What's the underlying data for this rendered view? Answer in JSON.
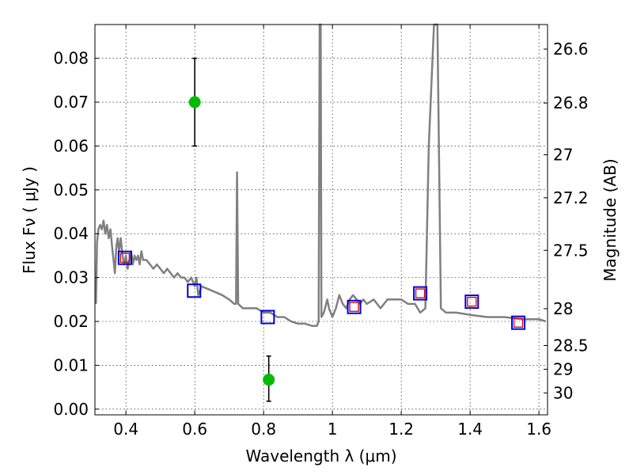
{
  "chart_data": {
    "type": "scatter",
    "title": "",
    "xlabel": "Wavelength  λ (μm)",
    "ylabel": "Flux  Fν  ( μJy )",
    "y2label": "Magnitude (AB)",
    "xlim": [
      0.31,
      1.625
    ],
    "ylim": [
      -0.0013,
      0.0877
    ],
    "grid": true,
    "x_ticks": [
      0.4,
      0.6,
      0.8,
      1.0,
      1.2,
      1.4,
      1.6
    ],
    "x_tick_labels": [
      "0.4",
      "0.6",
      "0.8",
      "1",
      "1.2",
      "1.4",
      "1.6"
    ],
    "y_ticks": [
      0.0,
      0.01,
      0.02,
      0.03,
      0.04,
      0.05,
      0.06,
      0.07,
      0.08
    ],
    "y_tick_labels": [
      "0.00",
      "0.01",
      "0.02",
      "0.03",
      "0.04",
      "0.05",
      "0.06",
      "0.07",
      "0.08"
    ],
    "y2_ticks": [
      {
        "label": "26.6",
        "flux": 0.0821
      },
      {
        "label": "26.8",
        "flux": 0.0698
      },
      {
        "label": "27",
        "flux": 0.058
      },
      {
        "label": "27.2",
        "flux": 0.0482
      },
      {
        "label": "27.5",
        "flux": 0.0362
      },
      {
        "label": "28",
        "flux": 0.0229
      },
      {
        "label": "28.5",
        "flux": 0.0145
      },
      {
        "label": "29",
        "flux": 0.0091
      },
      {
        "label": "30",
        "flux": 0.0037
      }
    ],
    "series": [
      {
        "kind": "line",
        "color": "#808080",
        "points": [
          [
            0.313,
            0.024
          ],
          [
            0.316,
            0.038
          ],
          [
            0.32,
            0.041
          ],
          [
            0.325,
            0.042
          ],
          [
            0.33,
            0.041
          ],
          [
            0.335,
            0.043
          ],
          [
            0.34,
            0.04
          ],
          [
            0.345,
            0.042
          ],
          [
            0.35,
            0.039
          ],
          [
            0.355,
            0.041
          ],
          [
            0.36,
            0.037
          ],
          [
            0.364,
            0.034
          ],
          [
            0.368,
            0.031
          ],
          [
            0.372,
            0.037
          ],
          [
            0.376,
            0.039
          ],
          [
            0.38,
            0.036
          ],
          [
            0.385,
            0.039
          ],
          [
            0.39,
            0.035
          ],
          [
            0.395,
            0.033
          ],
          [
            0.4,
            0.035
          ],
          [
            0.405,
            0.032
          ],
          [
            0.41,
            0.034
          ],
          [
            0.415,
            0.036
          ],
          [
            0.42,
            0.033
          ],
          [
            0.425,
            0.035
          ],
          [
            0.43,
            0.034
          ],
          [
            0.435,
            0.035
          ],
          [
            0.44,
            0.033
          ],
          [
            0.445,
            0.036
          ],
          [
            0.45,
            0.034
          ],
          [
            0.46,
            0.034
          ],
          [
            0.47,
            0.033
          ],
          [
            0.48,
            0.032
          ],
          [
            0.49,
            0.033
          ],
          [
            0.5,
            0.032
          ],
          [
            0.51,
            0.031
          ],
          [
            0.52,
            0.032
          ],
          [
            0.53,
            0.031
          ],
          [
            0.54,
            0.03
          ],
          [
            0.55,
            0.031
          ],
          [
            0.56,
            0.03
          ],
          [
            0.57,
            0.03
          ],
          [
            0.58,
            0.029
          ],
          [
            0.59,
            0.03
          ],
          [
            0.6,
            0.028
          ],
          [
            0.605,
            0.03
          ],
          [
            0.61,
            0.026
          ],
          [
            0.62,
            0.028
          ],
          [
            0.65,
            0.027
          ],
          [
            0.68,
            0.026
          ],
          [
            0.7,
            0.025
          ],
          [
            0.715,
            0.024
          ],
          [
            0.72,
            0.024
          ],
          [
            0.723,
            0.054
          ],
          [
            0.726,
            0.024
          ],
          [
            0.74,
            0.023
          ],
          [
            0.76,
            0.023
          ],
          [
            0.78,
            0.023
          ],
          [
            0.8,
            0.022
          ],
          [
            0.82,
            0.022
          ],
          [
            0.84,
            0.021
          ],
          [
            0.86,
            0.021
          ],
          [
            0.88,
            0.02
          ],
          [
            0.9,
            0.0195
          ],
          [
            0.92,
            0.0195
          ],
          [
            0.94,
            0.019
          ],
          [
            0.955,
            0.019
          ],
          [
            0.96,
            0.02
          ],
          [
            0.963,
            0.092
          ],
          [
            0.966,
            0.092
          ],
          [
            0.968,
            0.021
          ],
          [
            0.975,
            0.022
          ],
          [
            0.985,
            0.025
          ],
          [
            0.99,
            0.023
          ],
          [
            1.0,
            0.021
          ],
          [
            1.01,
            0.023
          ],
          [
            1.02,
            0.026
          ],
          [
            1.03,
            0.024
          ],
          [
            1.04,
            0.023
          ],
          [
            1.05,
            0.025
          ],
          [
            1.06,
            0.026
          ],
          [
            1.07,
            0.025
          ],
          [
            1.08,
            0.024
          ],
          [
            1.09,
            0.025
          ],
          [
            1.1,
            0.024
          ],
          [
            1.12,
            0.025
          ],
          [
            1.14,
            0.023
          ],
          [
            1.16,
            0.025
          ],
          [
            1.18,
            0.025
          ],
          [
            1.2,
            0.025
          ],
          [
            1.22,
            0.024
          ],
          [
            1.24,
            0.024
          ],
          [
            1.255,
            0.022
          ],
          [
            1.27,
            0.023
          ],
          [
            1.28,
            0.06
          ],
          [
            1.295,
            0.092
          ],
          [
            1.305,
            0.092
          ],
          [
            1.315,
            0.023
          ],
          [
            1.33,
            0.022
          ],
          [
            1.36,
            0.022
          ],
          [
            1.4,
            0.0215
          ],
          [
            1.45,
            0.021
          ],
          [
            1.5,
            0.021
          ],
          [
            1.55,
            0.0205
          ],
          [
            1.6,
            0.0205
          ],
          [
            1.62,
            0.02
          ]
        ]
      },
      {
        "kind": "markers",
        "marker": "square",
        "color": "#0000dd",
        "points": [
          [
            0.397,
            0.0345
          ],
          [
            0.598,
            0.027
          ],
          [
            0.812,
            0.021
          ],
          [
            1.063,
            0.0233
          ],
          [
            1.255,
            0.0264
          ],
          [
            1.405,
            0.0245
          ],
          [
            1.54,
            0.0197
          ]
        ]
      },
      {
        "kind": "markers",
        "marker": "square",
        "color": "#cc0000",
        "points": [
          [
            0.397,
            0.0345
          ],
          [
            1.063,
            0.0233
          ],
          [
            1.255,
            0.0264
          ],
          [
            1.405,
            0.0245
          ],
          [
            1.54,
            0.0197
          ]
        ]
      },
      {
        "kind": "errorbar",
        "marker": "circle",
        "color": "#00bb00",
        "points": [
          {
            "x": 0.6,
            "y": 0.07,
            "ylo": 0.06,
            "yhi": 0.08
          },
          {
            "x": 0.815,
            "y": 0.0067,
            "ylo": 0.0018,
            "yhi": 0.0121
          }
        ]
      }
    ]
  }
}
